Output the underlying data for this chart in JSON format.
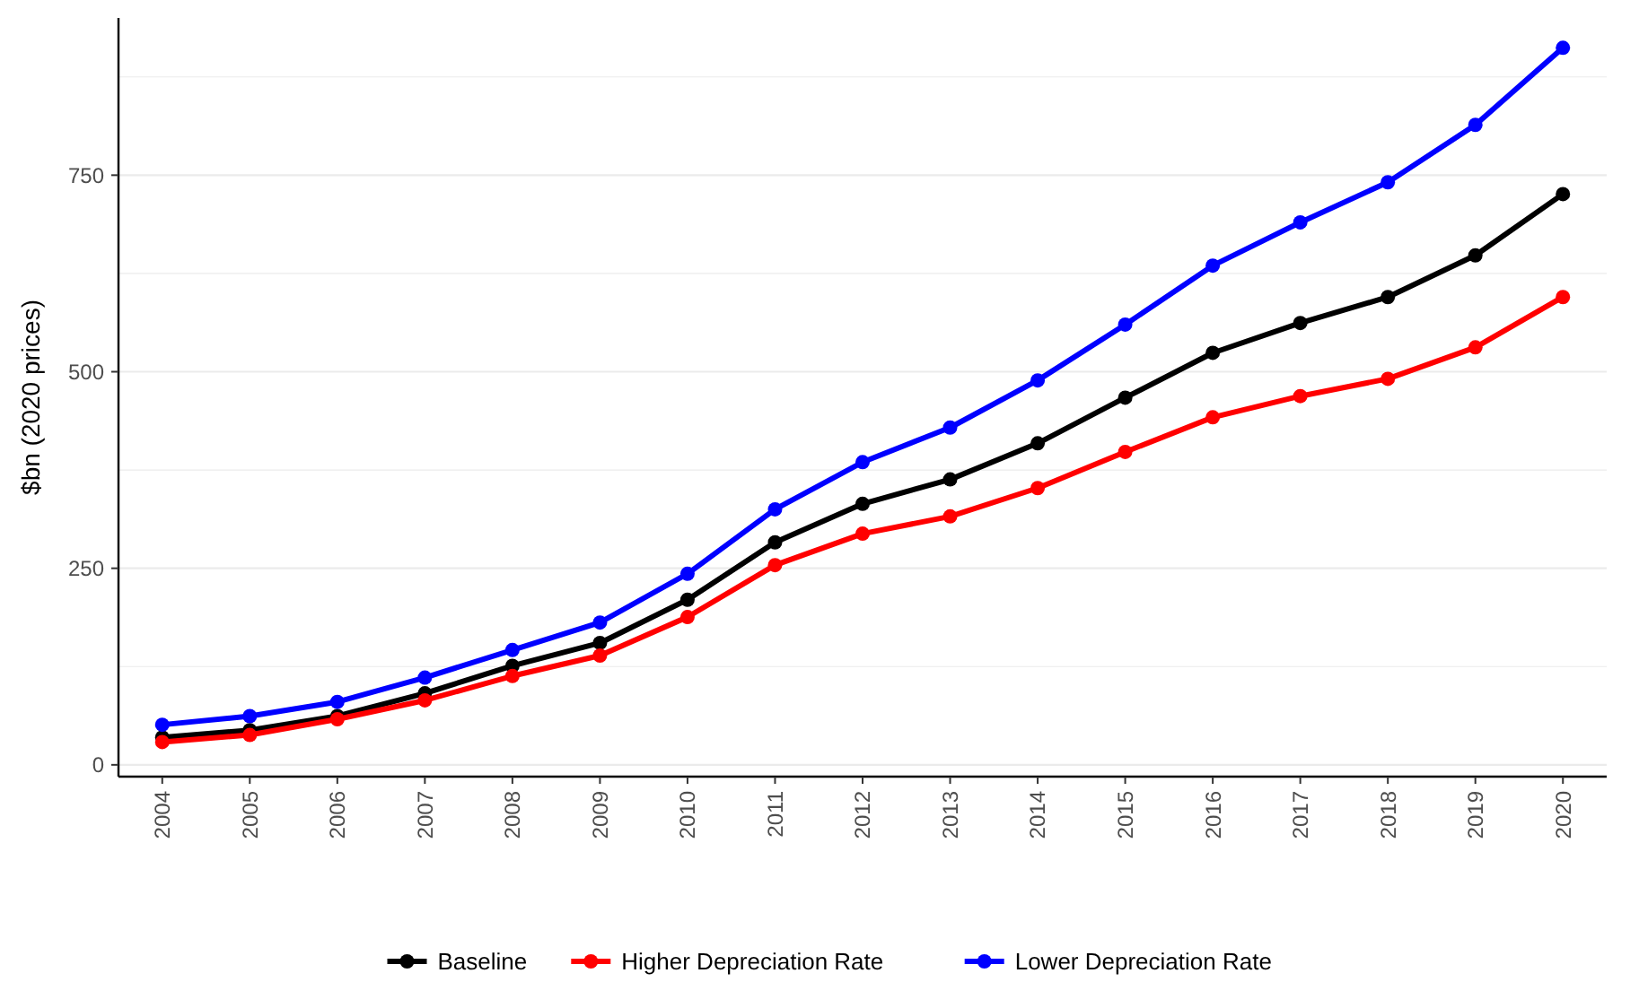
{
  "chart_data": {
    "type": "line",
    "ylabel": "$bn (2020 prices)",
    "categories": [
      "2004",
      "2005",
      "2006",
      "2007",
      "2008",
      "2009",
      "2010",
      "2011",
      "2012",
      "2013",
      "2014",
      "2015",
      "2016",
      "2017",
      "2018",
      "2019",
      "2020"
    ],
    "series": [
      {
        "name": "Baseline",
        "color": "#000000",
        "values": [
          35,
          44,
          62,
          91,
          126,
          155,
          210,
          283,
          332,
          363,
          409,
          467,
          524,
          562,
          595,
          648,
          726
        ]
      },
      {
        "name": "Higher Depreciation Rate",
        "color": "#ff0000",
        "values": [
          29,
          38,
          58,
          82,
          113,
          139,
          188,
          254,
          294,
          316,
          352,
          398,
          442,
          469,
          491,
          531,
          595
        ]
      },
      {
        "name": "Lower Depreciation Rate",
        "color": "#0000ff",
        "values": [
          51,
          62,
          80,
          111,
          146,
          181,
          243,
          325,
          385,
          429,
          489,
          560,
          635,
          690,
          741,
          814,
          912
        ]
      }
    ],
    "ylim": [
      -15,
      950
    ],
    "yticks": [
      0,
      {
        "value": 125,
        "label": null
      },
      250,
      {
        "value": 375,
        "label": null
      },
      500,
      {
        "value": 625,
        "label": null
      },
      750,
      {
        "value": 875,
        "label": null
      }
    ],
    "grid": "y",
    "legend": "bottom",
    "marker": "circle",
    "line_style": "solid"
  }
}
